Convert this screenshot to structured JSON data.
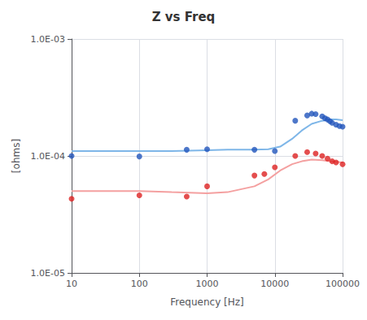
{
  "chart_data": {
    "type": "line",
    "title": "Z vs Freq",
    "xlabel": "Frequency [Hz]",
    "ylabel": "[ohms]",
    "log": true,
    "grid": true,
    "xlim": [
      10,
      100000
    ],
    "ylim": [
      1e-05,
      0.001
    ],
    "xticks": [
      10,
      100,
      1000,
      10000,
      100000
    ],
    "yticks": [
      {
        "value": 1e-05,
        "label": "1.0E-05"
      },
      {
        "value": 0.0001,
        "label": "1.0E-04"
      },
      {
        "value": 0.001,
        "label": "1.0E-03"
      }
    ],
    "series": [
      {
        "type": "line",
        "line_style": "solid",
        "color": "#7EB6E8",
        "x": [
          10,
          30,
          100,
          300,
          1000,
          2000,
          5000,
          8000,
          12000,
          18000,
          25000,
          35000,
          50000,
          65000,
          80000,
          100000
        ],
        "values": [
          0.00011,
          0.00011,
          0.00011,
          0.00011,
          0.000112,
          0.000113,
          0.000113,
          0.000114,
          0.00012,
          0.00014,
          0.000165,
          0.000188,
          0.0002,
          0.000205,
          0.000205,
          0.000202
        ]
      },
      {
        "type": "line",
        "line_style": "solid",
        "color": "#F4A0A0",
        "x": [
          10,
          30,
          100,
          300,
          1000,
          2000,
          5000,
          8000,
          12000,
          18000,
          25000,
          35000,
          50000,
          65000,
          80000,
          100000
        ],
        "values": [
          5e-05,
          5e-05,
          5e-05,
          4.9e-05,
          4.8e-05,
          4.9e-05,
          5.5e-05,
          6.3e-05,
          7.5e-05,
          8.5e-05,
          9e-05,
          9.3e-05,
          9.2e-05,
          9e-05,
          8.9e-05,
          8.8e-05
        ]
      },
      {
        "type": "scatter",
        "marker": "circle",
        "color": "#2255BB",
        "x": [
          10,
          100,
          500,
          1000,
          5000,
          10000,
          20000,
          30000,
          35000,
          40000,
          50000,
          55000,
          60000,
          65000,
          70000,
          80000,
          90000,
          100000
        ],
        "values": [
          0.0001,
          9.9e-05,
          0.000113,
          0.000114,
          0.000113,
          0.00011,
          0.0002,
          0.000222,
          0.00023,
          0.000228,
          0.000218,
          0.00021,
          0.000205,
          0.000198,
          0.000192,
          0.000185,
          0.00018,
          0.000178
        ]
      },
      {
        "type": "scatter",
        "marker": "circle",
        "color": "#DD2222",
        "x": [
          10,
          100,
          500,
          1000,
          5000,
          7000,
          10000,
          20000,
          30000,
          40000,
          50000,
          60000,
          70000,
          80000,
          100000
        ],
        "values": [
          4.3e-05,
          4.6e-05,
          4.5e-05,
          5.5e-05,
          6.8e-05,
          7e-05,
          8e-05,
          0.0001,
          0.000108,
          0.000105,
          0.0001,
          9.5e-05,
          9e-05,
          8.8e-05,
          8.5e-05
        ]
      }
    ]
  }
}
